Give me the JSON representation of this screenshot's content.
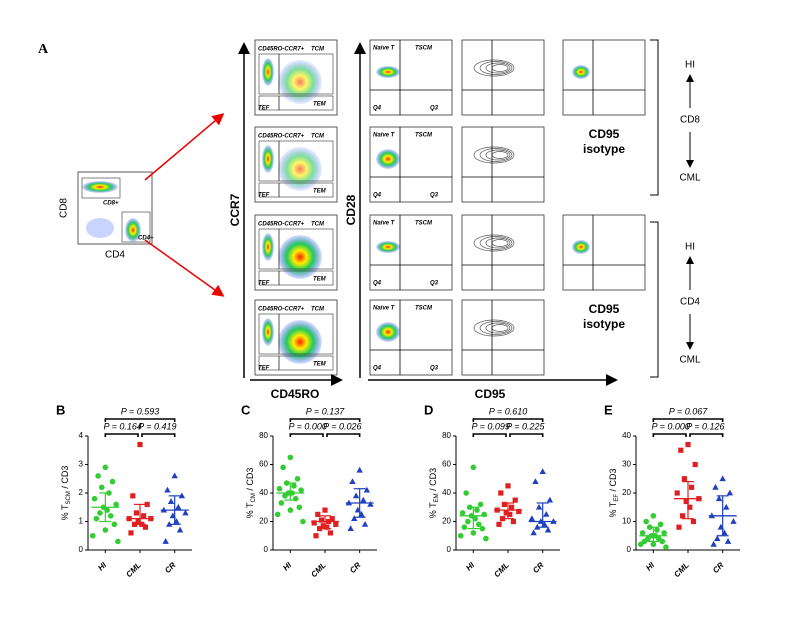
{
  "panel_a": {
    "label": "A",
    "overview": {
      "gate_top": "CD8+",
      "gate_bottom": "CD4+",
      "y_axis": "CD8",
      "x_axis": "CD4"
    },
    "ccr7_gates": [
      "CD45RO-CCR7+",
      "TCM",
      "TEF",
      "TEM"
    ],
    "ccr7_axis": "CCR7",
    "cd45ro_axis": "CD45RO",
    "cd28_gates": [
      "Naive T",
      "TSCM",
      "Q4",
      "Q3"
    ],
    "cd28_axis": "CD28",
    "cd95_axis": "CD95",
    "isotype": "CD95 isotype",
    "groups": [
      {
        "top": "HI",
        "middle": "CD8",
        "bottom": "CML"
      },
      {
        "top": "HI",
        "middle": "CD4",
        "bottom": "CML"
      }
    ]
  },
  "chart_data": [
    {
      "type": "scatter",
      "label": "B",
      "ylabel_parts": [
        "% T",
        "SCM",
        " / CD3"
      ],
      "categories": [
        "HI",
        "CML",
        "CR"
      ],
      "ylim": [
        0,
        4
      ],
      "yticks": [
        0,
        1,
        2,
        3,
        4
      ],
      "series": [
        {
          "name": "HI",
          "color": "#33cc33",
          "marker": "circle",
          "values": [
            2.9,
            2.6,
            2.4,
            2.2,
            2.0,
            1.8,
            1.6,
            1.5,
            1.4,
            1.3,
            1.2,
            1.1,
            0.9,
            0.7,
            0.5,
            0.3
          ],
          "center": 1.5,
          "low": 1.0,
          "high": 2.0
        },
        {
          "name": "CML",
          "color": "#e02020",
          "marker": "square",
          "values": [
            3.7,
            1.9,
            1.6,
            1.3,
            1.2,
            1.1,
            1.1,
            1.0,
            0.9,
            0.9,
            0.8,
            0.6
          ],
          "center": 1.1,
          "low": 0.9,
          "high": 1.6
        },
        {
          "name": "CR",
          "color": "#2040c0",
          "marker": "triangle",
          "values": [
            2.6,
            2.1,
            1.9,
            1.7,
            1.5,
            1.4,
            1.3,
            1.2,
            1.0,
            0.9,
            0.7,
            0.3
          ],
          "center": 1.4,
          "low": 0.9,
          "high": 1.9
        }
      ],
      "comparisons": [
        {
          "pair": [
            0,
            1
          ],
          "label": "P = 0.164",
          "color": "#000000"
        },
        {
          "pair": [
            1,
            2
          ],
          "label": "P = 0.419",
          "color": "#000000"
        },
        {
          "pair": [
            0,
            2
          ],
          "label": "P = 0.593",
          "color": "#000000"
        }
      ]
    },
    {
      "type": "scatter",
      "label": "C",
      "ylabel_parts": [
        "% T",
        "CM",
        " / CD3"
      ],
      "categories": [
        "HI",
        "CML",
        "CR"
      ],
      "ylim": [
        0,
        80
      ],
      "yticks": [
        0,
        20,
        40,
        60,
        80
      ],
      "series": [
        {
          "name": "HI",
          "color": "#33cc33",
          "marker": "circle",
          "values": [
            65,
            58,
            50,
            47,
            45,
            43,
            42,
            40,
            40,
            38,
            36,
            33,
            30,
            28,
            25,
            20
          ],
          "center": 40,
          "low": 35,
          "high": 47
        },
        {
          "name": "CML",
          "color": "#e02020",
          "marker": "square",
          "values": [
            28,
            25,
            22,
            21,
            20,
            19,
            18,
            17,
            16,
            15,
            12,
            10
          ],
          "center": 20,
          "low": 15,
          "high": 24
        },
        {
          "name": "CR",
          "color": "#2040c0",
          "marker": "triangle",
          "values": [
            56,
            48,
            42,
            38,
            35,
            33,
            32,
            28,
            25,
            22,
            18,
            15
          ],
          "center": 33,
          "low": 23,
          "high": 43
        }
      ],
      "comparisons": [
        {
          "pair": [
            0,
            1
          ],
          "label": "P = 0.000",
          "color": "#e02020"
        },
        {
          "pair": [
            1,
            2
          ],
          "label": "P = 0.026",
          "color": "#e02020"
        },
        {
          "pair": [
            0,
            2
          ],
          "label": "P = 0.137",
          "color": "#000000"
        }
      ]
    },
    {
      "type": "scatter",
      "label": "D",
      "ylabel_parts": [
        "% T",
        "EM",
        " / CD3"
      ],
      "categories": [
        "HI",
        "CML",
        "CR"
      ],
      "ylim": [
        0,
        80
      ],
      "yticks": [
        0,
        20,
        40,
        60,
        80
      ],
      "series": [
        {
          "name": "HI",
          "color": "#33cc33",
          "marker": "circle",
          "values": [
            58,
            40,
            32,
            30,
            28,
            26,
            25,
            24,
            22,
            20,
            18,
            16,
            15,
            12,
            10,
            8
          ],
          "center": 24,
          "low": 15,
          "high": 30
        },
        {
          "name": "CML",
          "color": "#e02020",
          "marker": "square",
          "values": [
            45,
            40,
            35,
            32,
            30,
            28,
            27,
            26,
            25,
            22,
            20,
            18
          ],
          "center": 28,
          "low": 22,
          "high": 33
        },
        {
          "name": "CR",
          "color": "#2040c0",
          "marker": "triangle",
          "values": [
            55,
            48,
            35,
            30,
            25,
            22,
            20,
            20,
            18,
            16,
            14,
            12
          ],
          "center": 20,
          "low": 16,
          "high": 33
        }
      ],
      "comparisons": [
        {
          "pair": [
            0,
            1
          ],
          "label": "P = 0.099",
          "color": "#000000"
        },
        {
          "pair": [
            1,
            2
          ],
          "label": "P = 0.225",
          "color": "#000000"
        },
        {
          "pair": [
            0,
            2
          ],
          "label": "P = 0.610",
          "color": "#000000"
        }
      ]
    },
    {
      "type": "scatter",
      "label": "E",
      "ylabel_parts": [
        "% T",
        "EF",
        " / CD3"
      ],
      "categories": [
        "HI",
        "CML",
        "CR"
      ],
      "ylim": [
        0,
        40
      ],
      "yticks": [
        0,
        10,
        20,
        30,
        40
      ],
      "series": [
        {
          "name": "HI",
          "color": "#33cc33",
          "marker": "circle",
          "values": [
            12,
            10,
            9,
            8,
            7,
            6,
            6,
            5,
            5,
            4,
            4,
            3,
            3,
            2,
            2,
            1
          ],
          "center": 5,
          "low": 3,
          "high": 8
        },
        {
          "name": "CML",
          "color": "#e02020",
          "marker": "square",
          "values": [
            37,
            35,
            30,
            25,
            22,
            20,
            18,
            17,
            15,
            12,
            10,
            8
          ],
          "center": 18,
          "low": 11,
          "high": 24
        },
        {
          "name": "CR",
          "color": "#2040c0",
          "marker": "triangle",
          "values": [
            25,
            22,
            20,
            18,
            15,
            12,
            10,
            8,
            6,
            4,
            3,
            2
          ],
          "center": 12,
          "low": 5,
          "high": 19
        }
      ],
      "comparisons": [
        {
          "pair": [
            0,
            1
          ],
          "label": "P = 0.000",
          "color": "#e02020"
        },
        {
          "pair": [
            1,
            2
          ],
          "label": "P = 0.126",
          "color": "#000000"
        },
        {
          "pair": [
            0,
            2
          ],
          "label": "P = 0.067",
          "color": "#000000"
        }
      ]
    }
  ]
}
